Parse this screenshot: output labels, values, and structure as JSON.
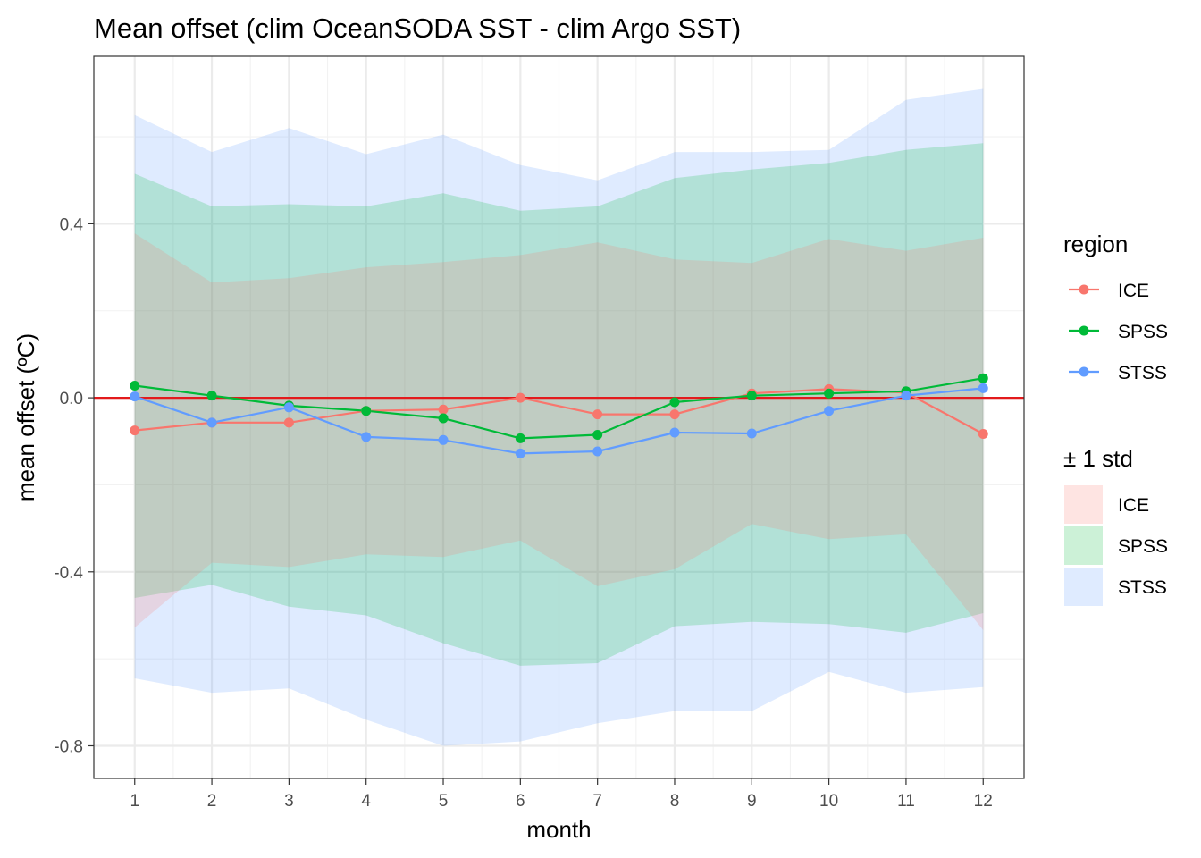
{
  "chart_data": {
    "type": "line",
    "title": "Mean offset (clim OceanSODA SST - clim Argo SST)",
    "xlabel": "month",
    "ylabel": "mean offset (ºC)",
    "x": [
      1,
      2,
      3,
      4,
      5,
      6,
      7,
      8,
      9,
      10,
      11,
      12
    ],
    "xlim": [
      0.47,
      12.53
    ],
    "ylim": [
      -0.875,
      0.785
    ],
    "xticks": [
      "1",
      "2",
      "3",
      "4",
      "5",
      "6",
      "7",
      "8",
      "9",
      "10",
      "11",
      "12"
    ],
    "yticks": [
      "-0.8",
      "-0.4",
      "0.0",
      "0.4"
    ],
    "ytick_values": [
      -0.8,
      -0.4,
      0.0,
      0.4
    ],
    "hline": {
      "y": 0.0,
      "color": "#e31a1c"
    },
    "grid": true,
    "legend_position": "right",
    "series": [
      {
        "name": "ICE",
        "color": "#f8766d",
        "values": [
          -0.075,
          -0.057,
          -0.057,
          -0.03,
          -0.027,
          0.0,
          -0.038,
          -0.038,
          0.01,
          0.02,
          0.012,
          -0.083
        ],
        "std_upper": [
          0.378,
          0.265,
          0.275,
          0.3,
          0.312,
          0.328,
          0.357,
          0.318,
          0.31,
          0.365,
          0.338,
          0.368
        ],
        "std_lower": [
          -0.528,
          -0.379,
          -0.389,
          -0.36,
          -0.366,
          -0.328,
          -0.433,
          -0.394,
          -0.29,
          -0.325,
          -0.314,
          -0.534
        ]
      },
      {
        "name": "SPSS",
        "color": "#00ba38",
        "values": [
          0.028,
          0.005,
          -0.018,
          -0.03,
          -0.047,
          -0.093,
          -0.085,
          -0.01,
          0.005,
          0.01,
          0.015,
          0.045
        ],
        "std_upper": [
          0.515,
          0.44,
          0.445,
          0.44,
          0.47,
          0.43,
          0.44,
          0.505,
          0.525,
          0.54,
          0.57,
          0.585
        ],
        "std_lower": [
          -0.46,
          -0.43,
          -0.48,
          -0.5,
          -0.564,
          -0.616,
          -0.61,
          -0.525,
          -0.515,
          -0.52,
          -0.54,
          -0.495
        ]
      },
      {
        "name": "STSS",
        "color": "#619cff",
        "values": [
          0.003,
          -0.057,
          -0.022,
          -0.09,
          -0.097,
          -0.128,
          -0.123,
          -0.08,
          -0.082,
          -0.03,
          0.005,
          0.022
        ],
        "std_upper": [
          0.65,
          0.565,
          0.62,
          0.56,
          0.605,
          0.535,
          0.5,
          0.565,
          0.565,
          0.57,
          0.685,
          0.71
        ],
        "std_lower": [
          -0.645,
          -0.678,
          -0.668,
          -0.74,
          -0.8,
          -0.79,
          -0.748,
          -0.72,
          -0.72,
          -0.63,
          -0.678,
          -0.665
        ]
      }
    ],
    "legends": {
      "lines": {
        "title": "region",
        "items": [
          "ICE",
          "SPSS",
          "STSS"
        ]
      },
      "ribbons": {
        "title": "± 1 std",
        "items": [
          "ICE",
          "SPSS",
          "STSS"
        ]
      }
    }
  }
}
